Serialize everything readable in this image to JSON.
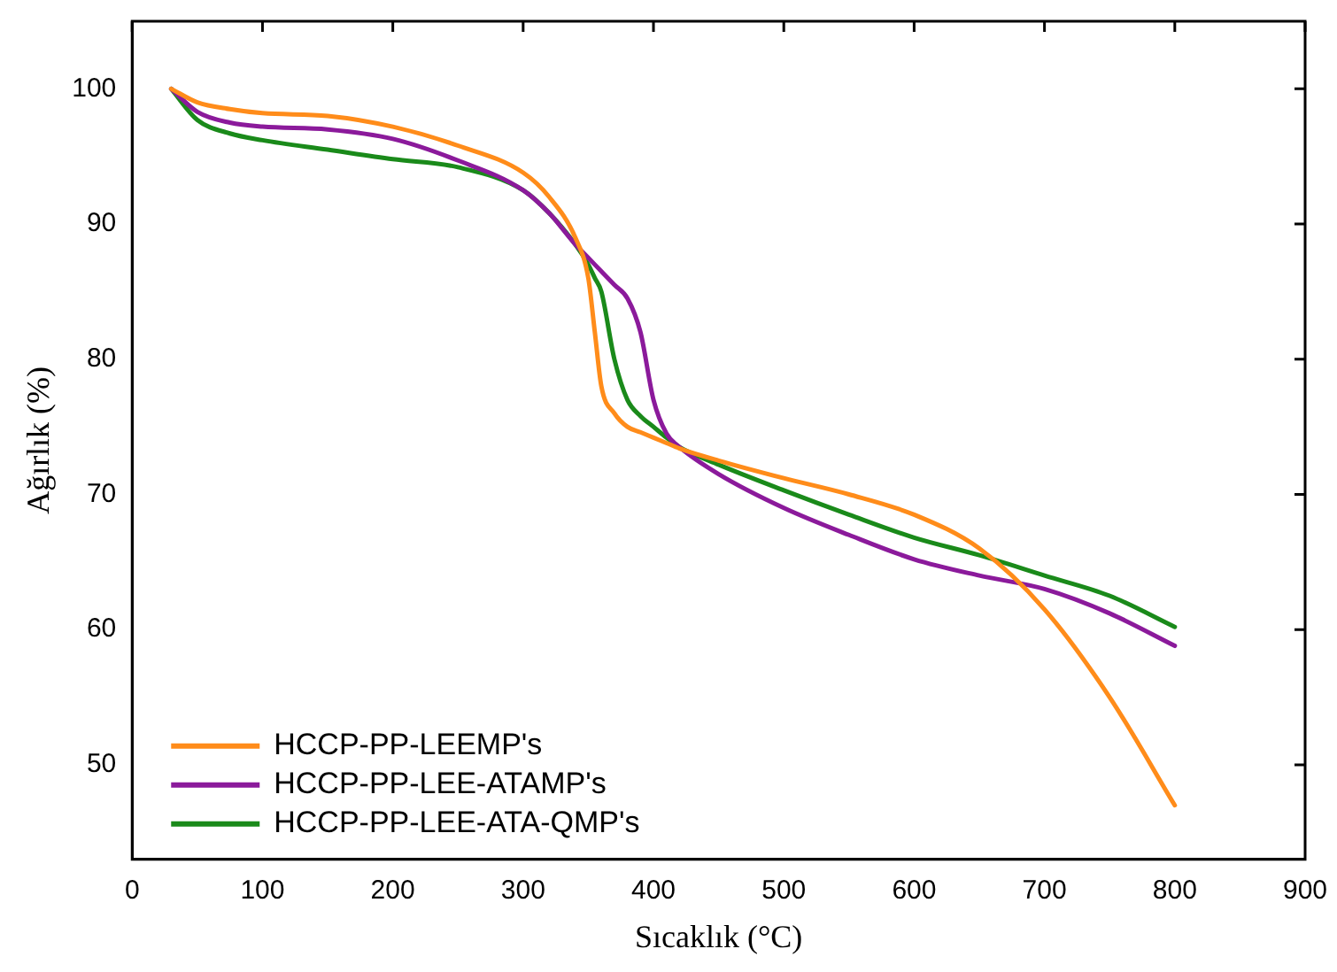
{
  "chart_data": {
    "type": "line",
    "xlabel": "Sıcaklık (°C)",
    "ylabel": "Ağırlık (%)",
    "xlim": [
      0,
      900
    ],
    "xticks": [
      0,
      100,
      200,
      300,
      400,
      500,
      600,
      700,
      800,
      900
    ],
    "ylim": [
      43,
      105
    ],
    "yticks": [
      50,
      60,
      70,
      80,
      90,
      100
    ],
    "grid": false,
    "legend": "bottom left",
    "marker": "none",
    "line_style": "solid",
    "x": [
      30,
      50,
      75,
      100,
      150,
      200,
      250,
      300,
      320,
      340,
      350,
      355,
      360,
      370,
      380,
      390,
      400,
      410,
      420,
      450,
      500,
      550,
      600,
      650,
      700,
      750,
      800
    ],
    "series": [
      {
        "name": "HCCP-PP-LEEMP's",
        "color": "#ff8c1a",
        "values": [
          100,
          99,
          98.5,
          98.2,
          98,
          97.2,
          95.8,
          93.8,
          92,
          89,
          86,
          82,
          78,
          76,
          75,
          74.6,
          74.2,
          73.8,
          73.4,
          72.5,
          71.2,
          70,
          68.5,
          66,
          61.5,
          55,
          47
        ]
      },
      {
        "name": "HCCP-PP-LEE-ATAMP's",
        "color": "#8b1a9b",
        "values": [
          100,
          98.3,
          97.5,
          97.2,
          97,
          96.3,
          94.7,
          92.5,
          90.8,
          88.5,
          87.5,
          87,
          86.5,
          85.5,
          84.5,
          82,
          77,
          74.5,
          73.5,
          71.5,
          69,
          67,
          65.2,
          64,
          63,
          61.2,
          58.8
        ]
      },
      {
        "name": "HCCP-PP-LEE-ATA-QMP's",
        "color": "#1a8a1a",
        "values": [
          100,
          97.7,
          96.7,
          96.2,
          95.5,
          94.8,
          94.2,
          92.5,
          90.8,
          88.5,
          87,
          86,
          85,
          80,
          77,
          75.8,
          75,
          74.2,
          73.5,
          72.2,
          70.3,
          68.5,
          66.8,
          65.5,
          64,
          62.5,
          60.2
        ]
      }
    ]
  }
}
